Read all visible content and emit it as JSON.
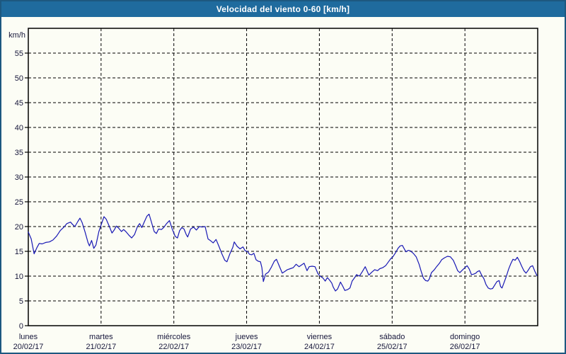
{
  "window": {
    "title": "Velocidad del viento 0-60 [km/h]"
  },
  "colors": {
    "titlebar_bg": "#1f6b9e",
    "window_border": "#1d5880",
    "background": "#fcfdf5",
    "grid": "#000000",
    "axis": "#000000",
    "label_text": "#16163a",
    "series_line": "#1818b4"
  },
  "chart_data": {
    "type": "line",
    "title": "Velocidad del viento 0-60 [km/h]",
    "ylabel": "km/h",
    "xlabel": "",
    "ylim": [
      0,
      60
    ],
    "xlim_days": [
      0,
      7
    ],
    "grid": "dashed",
    "legend": "none",
    "y_ticks": [
      0,
      5,
      10,
      15,
      20,
      25,
      30,
      35,
      40,
      45,
      50,
      55
    ],
    "x_days": [
      {
        "name": "lunes",
        "date": "20/02/17"
      },
      {
        "name": "martes",
        "date": "21/02/17"
      },
      {
        "name": "miércoles",
        "date": "22/02/17"
      },
      {
        "name": "jueves",
        "date": "23/02/17"
      },
      {
        "name": "viernes",
        "date": "24/02/17"
      },
      {
        "name": "sábado",
        "date": "25/02/17"
      },
      {
        "name": "domingo",
        "date": "26/02/17"
      }
    ],
    "series": [
      {
        "name": "Velocidad del viento",
        "color": "#1818b4",
        "points": [
          [
            0.0,
            18.9
          ],
          [
            0.04,
            17.5
          ],
          [
            0.08,
            14.5
          ],
          [
            0.12,
            15.8
          ],
          [
            0.15,
            16.6
          ],
          [
            0.19,
            16.5
          ],
          [
            0.24,
            16.8
          ],
          [
            0.29,
            16.9
          ],
          [
            0.34,
            17.3
          ],
          [
            0.39,
            18.1
          ],
          [
            0.44,
            19.2
          ],
          [
            0.49,
            19.9
          ],
          [
            0.53,
            20.6
          ],
          [
            0.58,
            20.9
          ],
          [
            0.61,
            20.4
          ],
          [
            0.64,
            20.0
          ],
          [
            0.68,
            21.0
          ],
          [
            0.71,
            21.7
          ],
          [
            0.74,
            20.8
          ],
          [
            0.78,
            18.9
          ],
          [
            0.82,
            16.8
          ],
          [
            0.84,
            16.1
          ],
          [
            0.87,
            17.2
          ],
          [
            0.9,
            15.6
          ],
          [
            0.93,
            16.3
          ],
          [
            0.97,
            19.0
          ],
          [
            1.0,
            20.3
          ],
          [
            1.04,
            22.0
          ],
          [
            1.07,
            21.5
          ],
          [
            1.12,
            19.8
          ],
          [
            1.15,
            18.7
          ],
          [
            1.18,
            19.3
          ],
          [
            1.21,
            20.1
          ],
          [
            1.24,
            19.7
          ],
          [
            1.28,
            19.0
          ],
          [
            1.31,
            19.4
          ],
          [
            1.34,
            19.0
          ],
          [
            1.38,
            18.3
          ],
          [
            1.42,
            17.7
          ],
          [
            1.46,
            18.4
          ],
          [
            1.5,
            20.0
          ],
          [
            1.53,
            20.6
          ],
          [
            1.56,
            19.8
          ],
          [
            1.59,
            20.8
          ],
          [
            1.63,
            22.1
          ],
          [
            1.66,
            22.5
          ],
          [
            1.69,
            21.0
          ],
          [
            1.73,
            19.0
          ],
          [
            1.76,
            18.6
          ],
          [
            1.79,
            19.5
          ],
          [
            1.83,
            19.4
          ],
          [
            1.86,
            19.8
          ],
          [
            1.9,
            20.6
          ],
          [
            1.94,
            21.2
          ],
          [
            1.98,
            19.4
          ],
          [
            2.02,
            18.0
          ],
          [
            2.05,
            17.7
          ],
          [
            2.08,
            19.2
          ],
          [
            2.11,
            19.8
          ],
          [
            2.14,
            19.5
          ],
          [
            2.17,
            18.4
          ],
          [
            2.19,
            17.9
          ],
          [
            2.23,
            19.5
          ],
          [
            2.27,
            19.9
          ],
          [
            2.31,
            19.3
          ],
          [
            2.35,
            20.0
          ],
          [
            2.39,
            19.9
          ],
          [
            2.43,
            20.0
          ],
          [
            2.47,
            17.5
          ],
          [
            2.5,
            17.2
          ],
          [
            2.54,
            16.7
          ],
          [
            2.58,
            17.4
          ],
          [
            2.62,
            16.0
          ],
          [
            2.66,
            14.5
          ],
          [
            2.7,
            13.2
          ],
          [
            2.73,
            12.9
          ],
          [
            2.77,
            14.5
          ],
          [
            2.81,
            15.8
          ],
          [
            2.83,
            16.9
          ],
          [
            2.87,
            16.0
          ],
          [
            2.91,
            15.5
          ],
          [
            2.95,
            15.9
          ],
          [
            2.98,
            15.1
          ],
          [
            3.01,
            15.0
          ],
          [
            3.04,
            14.4
          ],
          [
            3.07,
            14.3
          ],
          [
            3.1,
            14.6
          ],
          [
            3.13,
            13.3
          ],
          [
            3.16,
            13.0
          ],
          [
            3.19,
            12.9
          ],
          [
            3.21,
            11.7
          ],
          [
            3.23,
            8.9
          ],
          [
            3.26,
            10.4
          ],
          [
            3.3,
            10.8
          ],
          [
            3.34,
            11.8
          ],
          [
            3.38,
            13.0
          ],
          [
            3.41,
            13.4
          ],
          [
            3.45,
            12.0
          ],
          [
            3.49,
            10.6
          ],
          [
            3.52,
            10.9
          ],
          [
            3.56,
            11.3
          ],
          [
            3.6,
            11.5
          ],
          [
            3.64,
            11.7
          ],
          [
            3.68,
            12.4
          ],
          [
            3.72,
            11.9
          ],
          [
            3.76,
            12.3
          ],
          [
            3.79,
            12.6
          ],
          [
            3.83,
            11.1
          ],
          [
            3.86,
            11.9
          ],
          [
            3.9,
            12.0
          ],
          [
            3.94,
            11.9
          ],
          [
            3.98,
            10.5
          ],
          [
            4.01,
            10.0
          ],
          [
            4.05,
            9.6
          ],
          [
            4.08,
            9.0
          ],
          [
            4.11,
            9.7
          ],
          [
            4.14,
            9.2
          ],
          [
            4.17,
            8.6
          ],
          [
            4.19,
            7.8
          ],
          [
            4.22,
            7.0
          ],
          [
            4.25,
            7.4
          ],
          [
            4.29,
            8.8
          ],
          [
            4.32,
            8.0
          ],
          [
            4.35,
            7.1
          ],
          [
            4.39,
            7.3
          ],
          [
            4.42,
            7.6
          ],
          [
            4.45,
            9.0
          ],
          [
            4.49,
            9.8
          ],
          [
            4.51,
            10.3
          ],
          [
            4.55,
            10.0
          ],
          [
            4.59,
            10.9
          ],
          [
            4.63,
            11.9
          ],
          [
            4.66,
            10.9
          ],
          [
            4.68,
            10.2
          ],
          [
            4.72,
            10.8
          ],
          [
            4.76,
            11.3
          ],
          [
            4.8,
            11.1
          ],
          [
            4.83,
            11.5
          ],
          [
            4.87,
            11.7
          ],
          [
            4.91,
            12.1
          ],
          [
            4.95,
            12.9
          ],
          [
            4.98,
            13.5
          ],
          [
            5.01,
            13.9
          ],
          [
            5.05,
            14.8
          ],
          [
            5.08,
            15.6
          ],
          [
            5.11,
            16.1
          ],
          [
            5.14,
            16.2
          ],
          [
            5.17,
            15.4
          ],
          [
            5.19,
            14.9
          ],
          [
            5.22,
            15.2
          ],
          [
            5.25,
            15.1
          ],
          [
            5.29,
            14.6
          ],
          [
            5.33,
            13.9
          ],
          [
            5.37,
            12.4
          ],
          [
            5.4,
            10.9
          ],
          [
            5.43,
            9.6
          ],
          [
            5.46,
            9.1
          ],
          [
            5.49,
            9.0
          ],
          [
            5.51,
            9.4
          ],
          [
            5.54,
            10.7
          ],
          [
            5.58,
            11.3
          ],
          [
            5.61,
            11.9
          ],
          [
            5.65,
            12.6
          ],
          [
            5.68,
            13.3
          ],
          [
            5.72,
            13.7
          ],
          [
            5.76,
            14.0
          ],
          [
            5.8,
            13.9
          ],
          [
            5.84,
            13.2
          ],
          [
            5.87,
            12.2
          ],
          [
            5.9,
            11.1
          ],
          [
            5.93,
            10.7
          ],
          [
            5.97,
            11.3
          ],
          [
            6.0,
            11.7
          ],
          [
            6.03,
            12.1
          ],
          [
            6.06,
            11.4
          ],
          [
            6.09,
            10.3
          ],
          [
            6.12,
            10.4
          ],
          [
            6.15,
            10.6
          ],
          [
            6.17,
            10.9
          ],
          [
            6.2,
            11.1
          ],
          [
            6.23,
            10.2
          ],
          [
            6.26,
            9.5
          ],
          [
            6.29,
            8.3
          ],
          [
            6.32,
            7.6
          ],
          [
            6.35,
            7.4
          ],
          [
            6.38,
            7.5
          ],
          [
            6.41,
            8.2
          ],
          [
            6.44,
            8.9
          ],
          [
            6.47,
            9.1
          ],
          [
            6.49,
            7.9
          ],
          [
            6.51,
            7.6
          ],
          [
            6.54,
            8.8
          ],
          [
            6.57,
            10.0
          ],
          [
            6.6,
            11.4
          ],
          [
            6.63,
            12.5
          ],
          [
            6.66,
            13.4
          ],
          [
            6.69,
            13.2
          ],
          [
            6.72,
            13.8
          ],
          [
            6.75,
            13.0
          ],
          [
            6.78,
            12.0
          ],
          [
            6.81,
            11.1
          ],
          [
            6.84,
            10.6
          ],
          [
            6.87,
            11.2
          ],
          [
            6.9,
            11.9
          ],
          [
            6.93,
            12.1
          ],
          [
            6.96,
            11.0
          ],
          [
            6.99,
            10.1
          ]
        ]
      }
    ]
  }
}
